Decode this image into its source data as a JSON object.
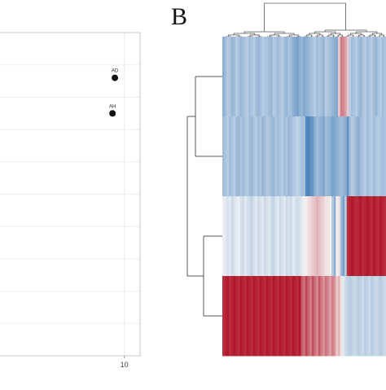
{
  "panel_a": {
    "x_tick_labels": [
      "10"
    ],
    "point_labels": [
      "AD",
      "AH"
    ]
  },
  "panel_b": {
    "letter": "B"
  },
  "chart_data": [
    {
      "type": "scatter",
      "title": "",
      "xlabel": "",
      "ylabel": "",
      "xlim": [
        -6,
        12
      ],
      "ylim": [
        -5,
        5
      ],
      "grid": true,
      "points": [
        {
          "label": "AD",
          "x": 8.8,
          "y": 3.6
        },
        {
          "label": "AH",
          "x": 8.5,
          "y": 2.5
        }
      ],
      "x_ticks": [
        10
      ]
    },
    {
      "type": "heatmap",
      "title": "",
      "rows": 4,
      "columns": 75,
      "color_scale": {
        "low": "#2166ac",
        "mid": "#f7f7f7",
        "high": "#b2182b"
      },
      "row_dendrogram": "left",
      "column_dendrogram": "top",
      "values": [
        [
          -0.5,
          -0.4,
          -0.3,
          -0.35,
          -0.45,
          -0.4,
          -0.3,
          -0.35,
          -0.45,
          -0.4,
          -0.35,
          -0.3,
          -0.4,
          -0.35,
          -0.3,
          -0.4,
          -0.45,
          -0.4,
          -0.3,
          -0.35,
          -0.35,
          -0.4,
          -0.45,
          -0.3,
          -0.35,
          -0.4,
          -0.35,
          -0.3,
          -0.4,
          -0.45,
          -0.35,
          -0.4,
          -0.5,
          -0.55,
          -0.6,
          -0.5,
          -0.45,
          -0.55,
          -0.5,
          -0.45,
          -0.4,
          -0.35,
          -0.3,
          -0.4,
          -0.35,
          -0.4,
          -0.45,
          -0.3,
          -0.35,
          -0.4,
          -0.45,
          -0.5,
          -0.55,
          0.2,
          0.55,
          0.5,
          0.4,
          0.2,
          -0.3,
          -0.4,
          -0.35,
          -0.3,
          -0.4,
          -0.45,
          -0.35,
          -0.3,
          -0.4,
          -0.35,
          -0.3,
          -0.4,
          -0.45,
          -0.35,
          -0.3,
          -0.4,
          -0.35
        ],
        [
          -0.4,
          -0.35,
          -0.3,
          -0.4,
          -0.35,
          -0.3,
          -0.4,
          -0.45,
          -0.35,
          -0.4,
          -0.35,
          -0.3,
          -0.4,
          -0.45,
          -0.35,
          -0.3,
          -0.4,
          -0.35,
          -0.45,
          -0.4,
          -0.3,
          -0.35,
          -0.4,
          -0.45,
          -0.35,
          -0.4,
          -0.35,
          -0.3,
          -0.4,
          -0.35,
          -0.45,
          -0.4,
          -0.35,
          -0.3,
          -0.25,
          -0.3,
          -0.4,
          -0.35,
          -0.75,
          -0.8,
          -0.7,
          -0.65,
          -0.5,
          -0.4,
          -0.45,
          -0.5,
          -0.55,
          -0.4,
          -0.45,
          -0.5,
          -0.6,
          -0.55,
          -0.5,
          -0.45,
          -0.4,
          -0.45,
          -0.5,
          -0.7,
          -0.4,
          -0.3,
          -0.35,
          -0.45,
          -0.5,
          -0.4,
          -0.35,
          -0.3,
          -0.4,
          -0.35,
          -0.3,
          -0.4,
          -0.35,
          -0.3,
          -0.35,
          -0.4,
          -0.35
        ],
        [
          -0.05,
          -0.1,
          -0.15,
          -0.1,
          -0.2,
          -0.15,
          -0.1,
          -0.05,
          -0.15,
          -0.2,
          -0.1,
          -0.15,
          -0.2,
          -0.25,
          -0.15,
          -0.1,
          -0.2,
          -0.15,
          -0.1,
          -0.2,
          -0.15,
          -0.1,
          -0.2,
          -0.25,
          -0.15,
          -0.1,
          -0.2,
          -0.15,
          -0.1,
          -0.2,
          -0.15,
          -0.2,
          -0.1,
          -0.15,
          -0.2,
          -0.15,
          -0.1,
          -0.05,
          0.05,
          0.1,
          0.15,
          0.2,
          0.25,
          0.3,
          0.25,
          0.2,
          0.15,
          0.1,
          0.1,
          0.05,
          -0.3,
          -0.5,
          0.05,
          0.1,
          -0.4,
          -0.6,
          -0.3,
          0.9,
          0.95,
          1.0,
          0.95,
          0.9,
          0.95,
          1.0,
          0.9,
          0.95,
          1.0,
          0.95,
          0.9,
          1.0,
          0.95,
          0.9,
          1.0,
          0.95,
          0.9
        ],
        [
          0.9,
          0.95,
          1.0,
          0.9,
          0.95,
          1.0,
          0.95,
          0.9,
          1.0,
          0.95,
          0.9,
          1.0,
          0.95,
          0.9,
          1.0,
          0.95,
          0.9,
          1.0,
          0.95,
          0.9,
          1.0,
          0.95,
          0.9,
          1.0,
          0.95,
          0.9,
          1.0,
          0.95,
          0.9,
          1.0,
          0.95,
          0.9,
          1.0,
          0.95,
          0.9,
          1.0,
          0.7,
          0.6,
          0.8,
          0.65,
          0.55,
          0.75,
          0.6,
          0.5,
          0.7,
          0.55,
          0.45,
          0.6,
          0.5,
          0.4,
          0.55,
          0.45,
          0.2,
          0.3,
          0.1,
          -0.1,
          -0.2,
          -0.25,
          -0.3,
          -0.25,
          -0.2,
          -0.25,
          -0.3,
          -0.25,
          -0.2,
          -0.3,
          -0.25,
          -0.2,
          -0.3,
          -0.25,
          -0.2,
          -0.25,
          -0.3,
          -0.25,
          -0.2
        ]
      ]
    }
  ]
}
